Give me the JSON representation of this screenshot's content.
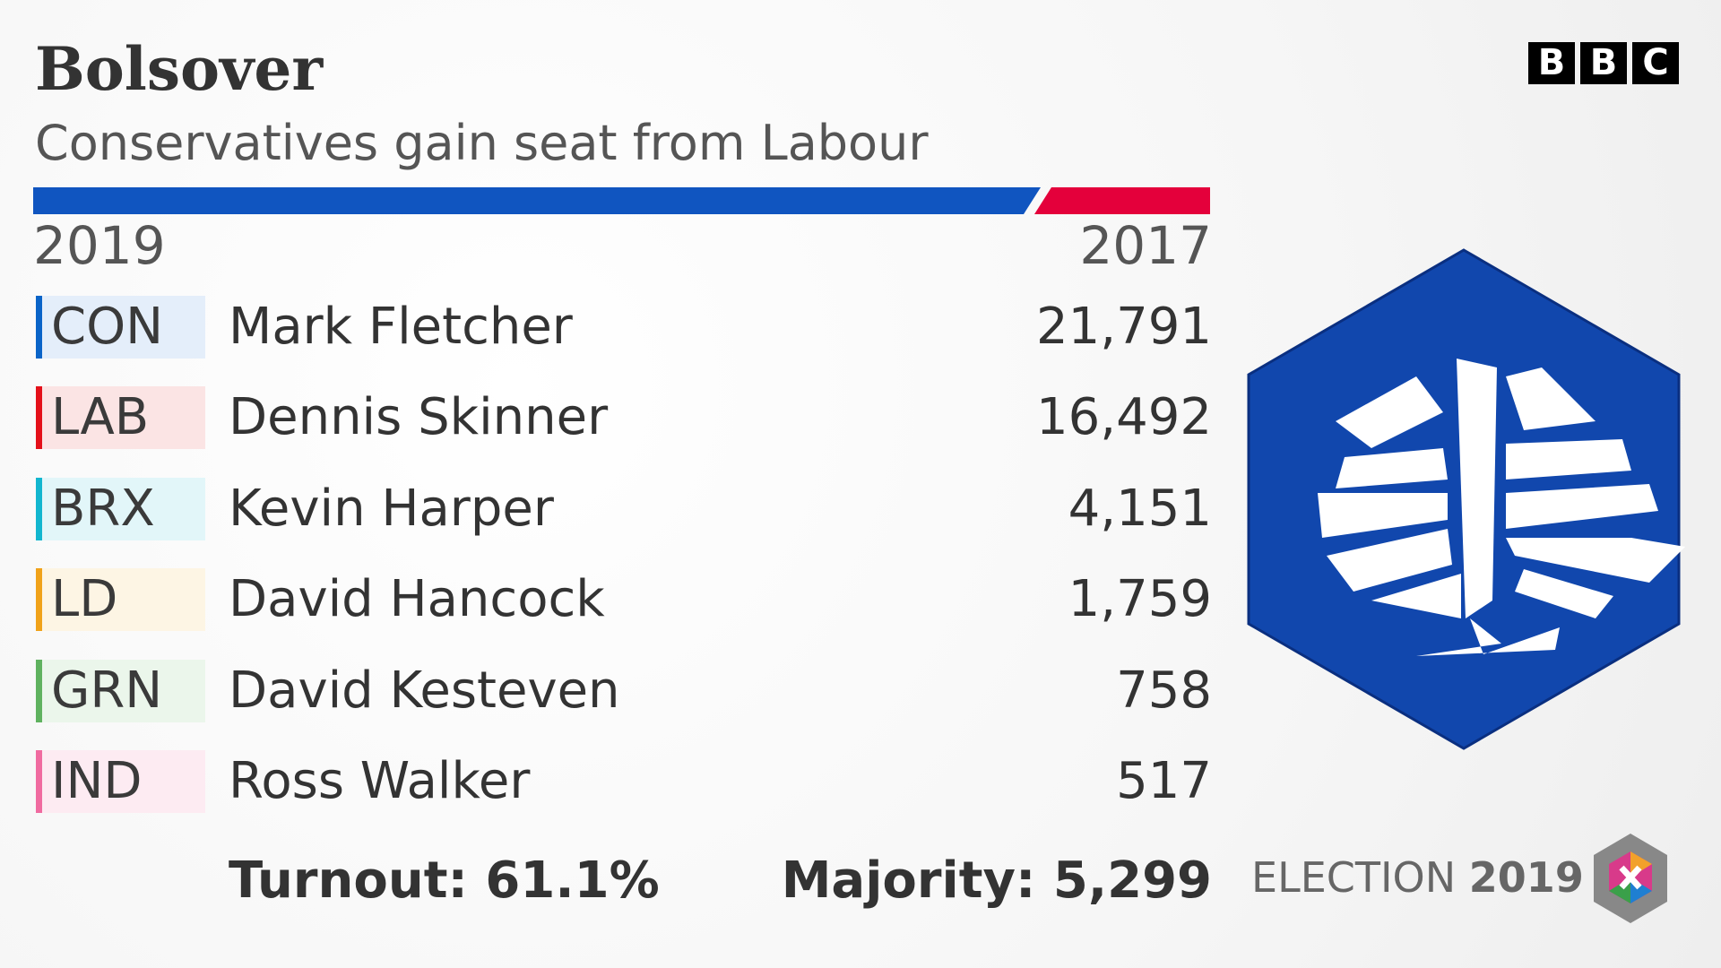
{
  "header": {
    "title": "Bolsover",
    "subtitle": "Conservatives gain seat from Labour",
    "logo": [
      "B",
      "B",
      "C"
    ]
  },
  "bar": {
    "colors": [
      "#1055c0",
      "#e4003b"
    ]
  },
  "years": {
    "left": "2019",
    "right": "2017"
  },
  "results": {
    "rows": [
      {
        "party": "CON",
        "candidate": "Mark Fletcher",
        "votes": "21,791",
        "color": "#0a64c8",
        "tint": "#e4eefa"
      },
      {
        "party": "LAB",
        "candidate": "Dennis Skinner",
        "votes": "16,492",
        "color": "#e4101a",
        "tint": "#fbe4e4"
      },
      {
        "party": "BRX",
        "candidate": "Kevin Harper",
        "votes": "4,151",
        "color": "#12b6cf",
        "tint": "#e2f6f9"
      },
      {
        "party": "LD",
        "candidate": "David Hancock",
        "votes": "1,759",
        "color": "#f0a21a",
        "tint": "#fdf5e4"
      },
      {
        "party": "GRN",
        "candidate": "David Kesteven",
        "votes": "758",
        "color": "#5fb25f",
        "tint": "#ebf6eb"
      },
      {
        "party": "IND",
        "candidate": "Ross Walker",
        "votes": "517",
        "color": "#f06ba0",
        "tint": "#fdebf2"
      }
    ]
  },
  "footer": {
    "turnout": "Turnout: 61.1%",
    "majority": "Majority: 5,299",
    "election": "ELECTION",
    "year": "2019"
  }
}
